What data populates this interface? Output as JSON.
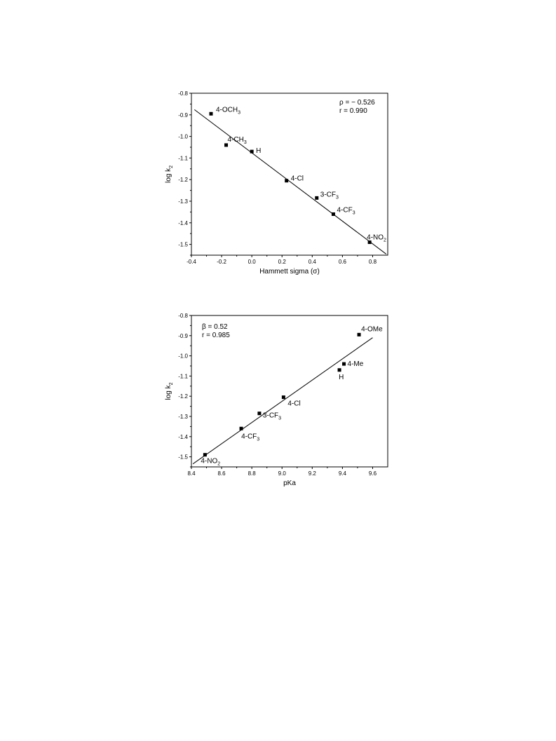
{
  "chart_data": [
    {
      "type": "scatter",
      "xlabel": "Hammett sigma (σ)",
      "ylabel": "log k2",
      "xlim": [
        -0.4,
        0.9
      ],
      "ylim": [
        -1.55,
        -0.8
      ],
      "xticks": [
        "-0.4",
        "-0.2",
        "0.0",
        "0.2",
        "0.4",
        "0.6",
        "0.8"
      ],
      "yticks": [
        "-0.8",
        "-0.9",
        "-1.0",
        "-1.1",
        "-1.2",
        "-1.3",
        "-1.4",
        "-1.5"
      ],
      "points": [
        {
          "label": "4-OCH3",
          "x": -0.27,
          "y": -0.895
        },
        {
          "label": "4-CH3",
          "x": -0.17,
          "y": -1.04
        },
        {
          "label": "H",
          "x": 0.0,
          "y": -1.07
        },
        {
          "label": "4-Cl",
          "x": 0.23,
          "y": -1.205
        },
        {
          "label": "3-CF3",
          "x": 0.43,
          "y": -1.285
        },
        {
          "label": "4-CF3",
          "x": 0.54,
          "y": -1.36
        },
        {
          "label": "4-NO2",
          "x": 0.78,
          "y": -1.49
        }
      ],
      "fit_line": {
        "x": [
          -0.38,
          0.89
        ],
        "y": [
          -0.876,
          -1.545
        ]
      },
      "annotations": [
        "ρ = − 0.526",
        "r = 0.990"
      ]
    },
    {
      "type": "scatter",
      "xlabel": "pKa",
      "ylabel": "log k2",
      "xlim": [
        8.4,
        9.7
      ],
      "ylim": [
        -1.55,
        -0.8
      ],
      "xticks": [
        "8.4",
        "8.6",
        "8.8",
        "9.0",
        "9.2",
        "9.4",
        "9.6"
      ],
      "yticks": [
        "-0.8",
        "-0.9",
        "-1.0",
        "-1.1",
        "-1.2",
        "-1.3",
        "-1.4",
        "-1.5"
      ],
      "points": [
        {
          "label": "4-OMe",
          "x": 9.51,
          "y": -0.895
        },
        {
          "label": "4-Me",
          "x": 9.41,
          "y": -1.04
        },
        {
          "label": "H",
          "x": 9.38,
          "y": -1.07
        },
        {
          "label": "4-Cl",
          "x": 9.01,
          "y": -1.205
        },
        {
          "label": "3-CF3",
          "x": 8.85,
          "y": -1.285
        },
        {
          "label": "4-CF3",
          "x": 8.73,
          "y": -1.36
        },
        {
          "label": "4-NO2",
          "x": 8.49,
          "y": -1.49
        }
      ],
      "fit_line": {
        "x": [
          8.41,
          9.6
        ],
        "y": [
          -1.535,
          -0.91
        ]
      },
      "annotations": [
        "β = 0.52",
        "r = 0.985"
      ]
    }
  ]
}
